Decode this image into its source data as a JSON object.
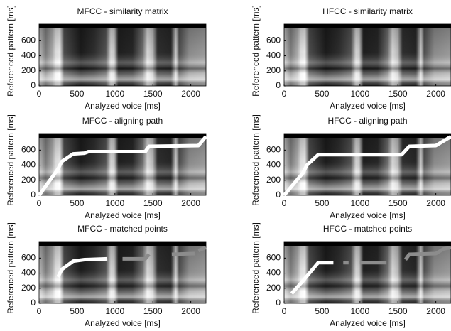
{
  "chart_data": [
    {
      "type": "line",
      "title": "MFCC - similarity matrix",
      "xlabel": "Analyzed voice [ms]",
      "ylabel": "Referenced pattern [ms]",
      "xlim": [
        0,
        2200
      ],
      "ylim": [
        0,
        820
      ],
      "xticks": [
        0,
        500,
        1000,
        1500,
        2000
      ],
      "yticks": [
        0,
        200,
        400,
        600
      ],
      "series": []
    },
    {
      "type": "line",
      "title": "HFCC - similarity matrix",
      "xlabel": "Analyzed voice [ms]",
      "ylabel": "Referenced pattern [ms]",
      "xlim": [
        0,
        2200
      ],
      "ylim": [
        0,
        820
      ],
      "xticks": [
        0,
        500,
        1000,
        1500,
        2000
      ],
      "yticks": [
        0,
        200,
        400,
        600
      ],
      "series": []
    },
    {
      "type": "line",
      "title": "MFCC - aligning path",
      "xlabel": "Analyzed voice [ms]",
      "ylabel": "Referenced pattern [ms]",
      "xlim": [
        0,
        2200
      ],
      "ylim": [
        0,
        820
      ],
      "xticks": [
        0,
        500,
        1000,
        1500,
        2000
      ],
      "yticks": [
        0,
        200,
        400,
        600
      ],
      "series": [
        {
          "color": "#ffffff",
          "x": [
            0,
            250,
            300,
            450,
            600,
            650,
            1400,
            1450,
            2100,
            2200
          ],
          "values": [
            0,
            350,
            450,
            550,
            560,
            580,
            580,
            650,
            660,
            780
          ]
        }
      ]
    },
    {
      "type": "line",
      "title": "HFCC - aligning path",
      "xlabel": "Analyzed voice [ms]",
      "ylabel": "Referenced pattern [ms]",
      "xlim": [
        0,
        2200
      ],
      "ylim": [
        0,
        820
      ],
      "xticks": [
        0,
        500,
        1000,
        1500,
        2000
      ],
      "yticks": [
        0,
        200,
        400,
        600
      ],
      "series": [
        {
          "color": "#ffffff",
          "x": [
            0,
            250,
            300,
            450,
            1550,
            1650,
            2000,
            2100,
            2200
          ],
          "values": [
            0,
            300,
            400,
            540,
            540,
            650,
            660,
            720,
            780
          ]
        }
      ]
    },
    {
      "type": "line",
      "title": "MFCC - matched points",
      "xlabel": "Analyzed voice [ms]",
      "ylabel": "Referenced pattern [ms]",
      "xlim": [
        0,
        2200
      ],
      "ylim": [
        0,
        820
      ],
      "xticks": [
        0,
        500,
        1000,
        1500,
        2000
      ],
      "yticks": [
        0,
        200,
        400,
        600
      ],
      "series": [
        {
          "color": "#ffffff",
          "x": [
            250,
            300,
            450,
            600,
            900
          ],
          "values": [
            350,
            450,
            560,
            580,
            590
          ]
        },
        {
          "color": "#8c8c8c",
          "x": [
            1100,
            1400,
            1450,
            1500,
            1650,
            null,
            1750,
            2050,
            null,
            2100,
            2200
          ],
          "values": [
            590,
            590,
            650,
            null,
            650,
            null,
            650,
            660,
            null,
            700,
            740
          ]
        }
      ]
    },
    {
      "type": "line",
      "title": "HFCC - matched points",
      "xlabel": "Analyzed voice [ms]",
      "ylabel": "Referenced pattern [ms]",
      "xlim": [
        0,
        2200
      ],
      "ylim": [
        0,
        820
      ],
      "xticks": [
        0,
        500,
        1000,
        1500,
        2000
      ],
      "yticks": [
        0,
        200,
        400,
        600
      ],
      "series": [
        {
          "color": "#ffffff",
          "x": [
            100,
            250,
            450,
            650
          ],
          "values": [
            130,
            300,
            540,
            540
          ]
        },
        {
          "color": "#8c8c8c",
          "x": [
            780,
            850,
            null,
            1000,
            1350,
            null,
            1600,
            1650,
            2000,
            2100,
            2200
          ],
          "values": [
            540,
            540,
            null,
            540,
            540,
            null,
            580,
            650,
            660,
            720,
            740
          ]
        }
      ]
    }
  ]
}
